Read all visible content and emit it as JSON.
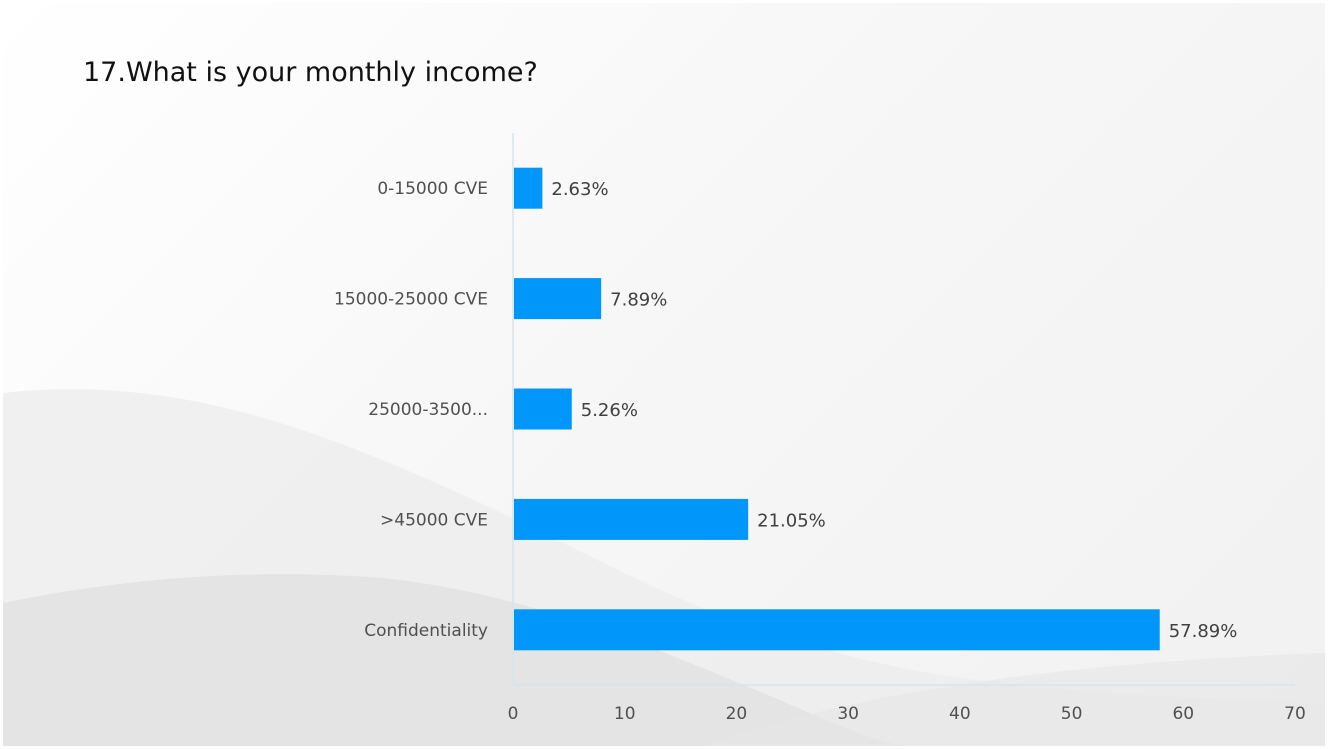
{
  "slide": {
    "title": "17.What is your monthly income?"
  },
  "chart_data": {
    "type": "bar",
    "orientation": "horizontal",
    "title": "17.What is your monthly income?",
    "categories": [
      "0-15000 CVE",
      "15000-25000 CVE",
      "25000-3500...",
      ">45000 CVE",
      "Confidentiality"
    ],
    "values": [
      2.63,
      7.89,
      5.26,
      21.05,
      57.89
    ],
    "data_labels": [
      "2.63%",
      "7.89%",
      "5.26%",
      "21.05%",
      "57.89%"
    ],
    "xlim": [
      0,
      70
    ],
    "x_ticks": [
      0,
      10,
      20,
      30,
      40,
      50,
      60,
      70
    ],
    "xlabel": "",
    "ylabel": "",
    "grid": false,
    "legend": "none",
    "bar_color": "#0096FA",
    "axis_color": "#D6E4F2"
  }
}
